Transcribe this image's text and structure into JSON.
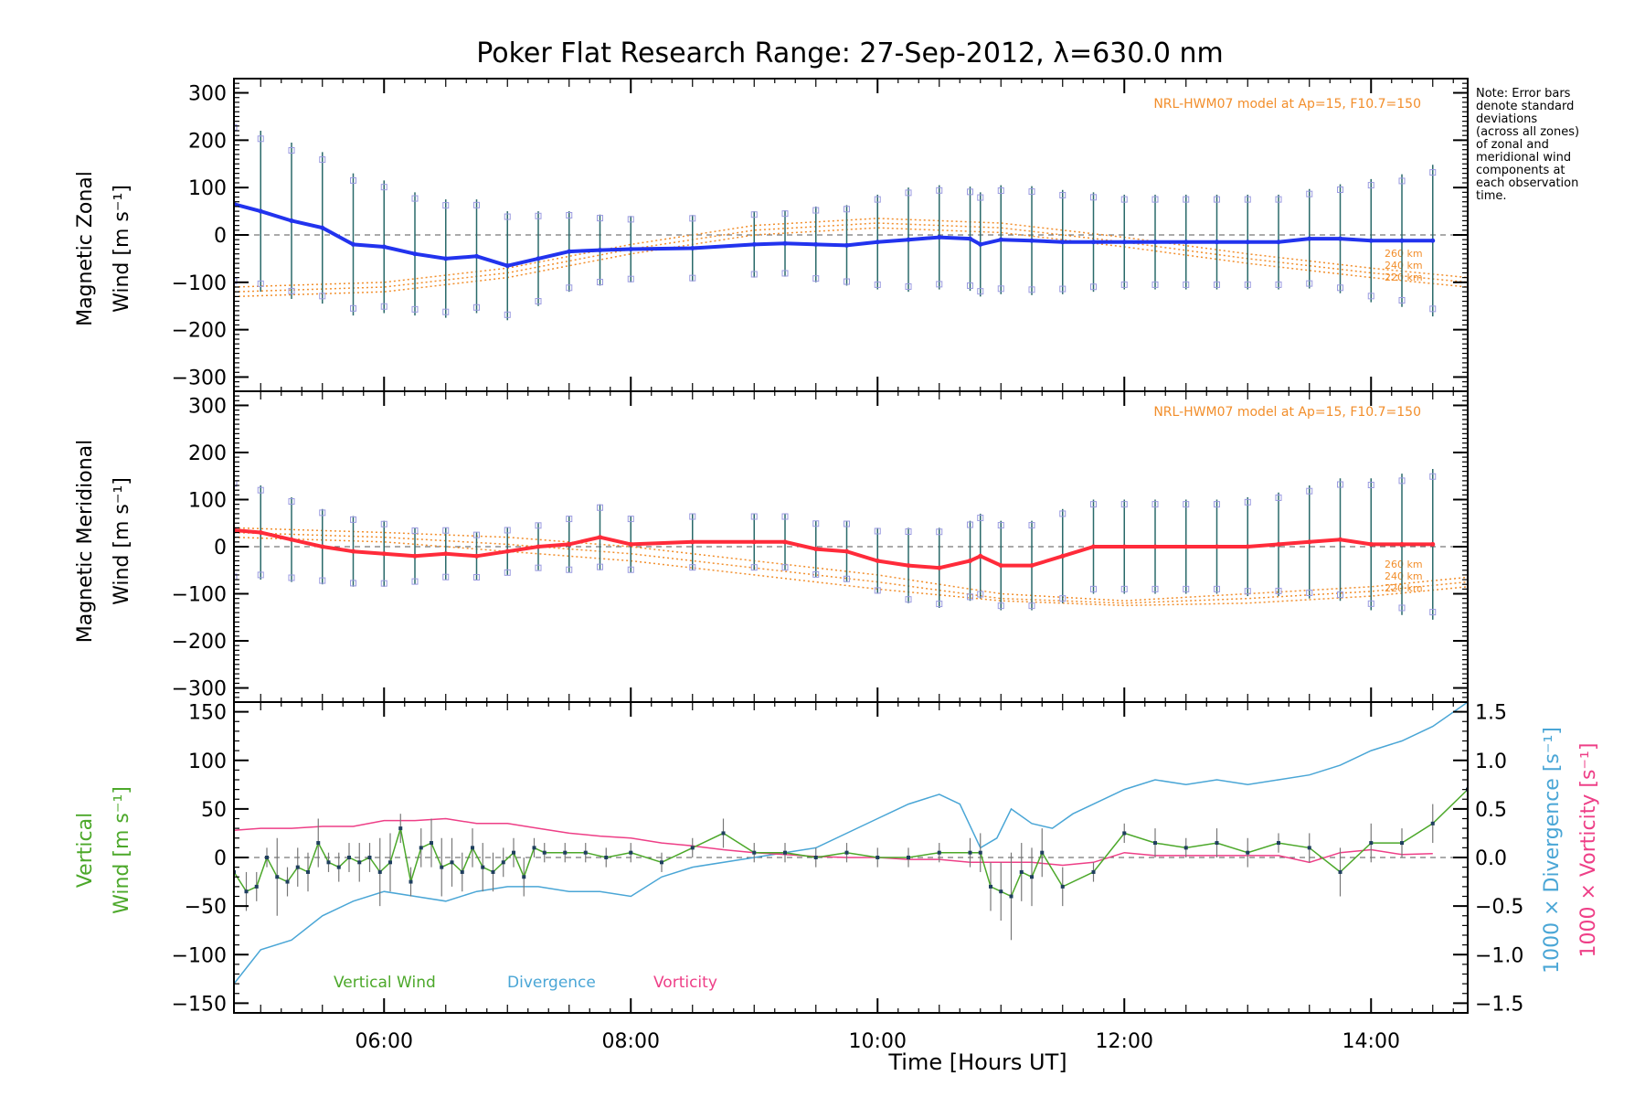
{
  "title": "Poker Flat Research Range: 27-Sep-2012, λ=630.0 nm",
  "note": [
    "Note: Error bars",
    "denote standard",
    "deviations",
    "(across all zones)",
    "of zonal and",
    "meridional wind",
    "components at",
    "each observation",
    "time."
  ],
  "colors": {
    "zonal": "#2233ee",
    "meridional": "#ff2b3a",
    "vertical": "#4ca82a",
    "divergence": "#4aa6d6",
    "vorticity": "#ee3f87",
    "model": "#f28e2b",
    "scatter": "#9a9ae0"
  },
  "chart_data": [
    {
      "type": "line",
      "panel": "zonal",
      "ylabel_line1": "Magnetic Zonal",
      "ylabel_line2": "Wind [m s⁻¹]",
      "ylim": [
        -330,
        330
      ],
      "xlim": [
        "04:47",
        "14:47"
      ],
      "yticks": [
        "300",
        "200",
        "100",
        "0",
        "−100",
        "−200",
        "−300"
      ],
      "model_label": "NRL-HWM07 model at Ap=15, F10.7=150",
      "model_alt_labels": [
        "260 km",
        "240 km",
        "220 km"
      ],
      "series": [
        {
          "name": "",
          "x": [
            "04:47",
            "05:00",
            "05:15",
            "05:30",
            "05:45",
            "06:00",
            "06:15",
            "06:30",
            "06:45",
            "07:00",
            "07:15",
            "07:30",
            "07:45",
            "08:00",
            "08:30",
            "09:00",
            "09:15",
            "09:30",
            "09:45",
            "10:00",
            "10:15",
            "10:30",
            "10:45",
            "10:50",
            "11:00",
            "11:15",
            "11:30",
            "11:45",
            "12:00",
            "12:15",
            "12:30",
            "12:45",
            "13:00",
            "13:15",
            "13:30",
            "13:45",
            "14:00",
            "14:15",
            "14:30"
          ],
          "values": [
            65,
            50,
            30,
            15,
            -20,
            -25,
            -40,
            -50,
            -45,
            -65,
            -50,
            -35,
            -32,
            -30,
            -28,
            -20,
            -18,
            -20,
            -22,
            -15,
            -10,
            -5,
            -8,
            -20,
            -10,
            -12,
            -15,
            -15,
            -15,
            -15,
            -15,
            -15,
            -15,
            -15,
            -8,
            -8,
            -12,
            -12,
            -12
          ],
          "error": [
            180,
            170,
            165,
            160,
            150,
            140,
            130,
            125,
            120,
            115,
            100,
            85,
            75,
            70,
            70,
            70,
            70,
            80,
            85,
            100,
            110,
            110,
            110,
            110,
            115,
            115,
            110,
            105,
            100,
            100,
            100,
            100,
            100,
            100,
            105,
            115,
            130,
            140,
            160
          ]
        }
      ],
      "model_curves": [
        {
          "alt": "260 km",
          "x": [
            "04:47",
            "06:00",
            "07:00",
            "08:00",
            "09:00",
            "10:00",
            "11:00",
            "12:00",
            "13:00",
            "14:00",
            "14:47"
          ],
          "values": [
            -110,
            -100,
            -70,
            -20,
            20,
            35,
            25,
            -5,
            -40,
            -70,
            -90
          ]
        },
        {
          "alt": "240 km",
          "x": [
            "04:47",
            "06:00",
            "07:00",
            "08:00",
            "09:00",
            "10:00",
            "11:00",
            "12:00",
            "13:00",
            "14:00",
            "14:47"
          ],
          "values": [
            -120,
            -110,
            -80,
            -30,
            10,
            25,
            15,
            -15,
            -50,
            -80,
            -100
          ]
        },
        {
          "alt": "220 km",
          "x": [
            "04:47",
            "06:00",
            "07:00",
            "08:00",
            "09:00",
            "10:00",
            "11:00",
            "12:00",
            "13:00",
            "14:00",
            "14:47"
          ],
          "values": [
            -130,
            -120,
            -90,
            -40,
            0,
            15,
            5,
            -25,
            -60,
            -90,
            -110
          ]
        }
      ]
    },
    {
      "type": "line",
      "panel": "meridional",
      "ylabel_line1": "Magnetic Meridional",
      "ylabel_line2": "Wind [m s⁻¹]",
      "ylim": [
        -330,
        330
      ],
      "xlim": [
        "04:47",
        "14:47"
      ],
      "yticks": [
        "300",
        "200",
        "100",
        "0",
        "−100",
        "−200",
        "−300"
      ],
      "model_label": "NRL-HWM07 model at Ap=15, F10.7=150",
      "model_alt_labels": [
        "260 km",
        "240 km",
        "220 km"
      ],
      "series": [
        {
          "name": "",
          "x": [
            "04:47",
            "05:00",
            "05:15",
            "05:30",
            "05:45",
            "06:00",
            "06:15",
            "06:30",
            "06:45",
            "07:00",
            "07:15",
            "07:30",
            "07:45",
            "08:00",
            "08:30",
            "09:00",
            "09:15",
            "09:30",
            "09:45",
            "10:00",
            "10:15",
            "10:30",
            "10:45",
            "10:50",
            "11:00",
            "11:15",
            "11:30",
            "11:45",
            "12:00",
            "12:15",
            "12:30",
            "12:45",
            "13:00",
            "13:15",
            "13:30",
            "13:45",
            "14:00",
            "14:15",
            "14:30"
          ],
          "values": [
            35,
            30,
            15,
            0,
            -10,
            -15,
            -20,
            -15,
            -20,
            -10,
            0,
            5,
            20,
            5,
            10,
            10,
            10,
            -5,
            -10,
            -30,
            -40,
            -45,
            -30,
            -20,
            -40,
            -40,
            -20,
            0,
            0,
            0,
            0,
            0,
            0,
            5,
            10,
            15,
            5,
            5,
            5
          ],
          "error": [
            110,
            100,
            90,
            80,
            75,
            70,
            60,
            55,
            50,
            50,
            50,
            60,
            70,
            60,
            60,
            60,
            60,
            60,
            65,
            70,
            80,
            85,
            85,
            90,
            95,
            95,
            100,
            100,
            100,
            100,
            100,
            100,
            105,
            110,
            120,
            130,
            140,
            150,
            160
          ]
        }
      ],
      "model_curves": [
        {
          "alt": "260 km",
          "x": [
            "04:47",
            "06:00",
            "07:00",
            "08:00",
            "09:00",
            "10:00",
            "11:00",
            "12:00",
            "13:00",
            "14:00",
            "14:47"
          ],
          "values": [
            40,
            30,
            20,
            0,
            -30,
            -60,
            -100,
            -115,
            -100,
            -85,
            -65
          ]
        },
        {
          "alt": "240 km",
          "x": [
            "04:47",
            "06:00",
            "07:00",
            "08:00",
            "09:00",
            "10:00",
            "11:00",
            "12:00",
            "13:00",
            "14:00",
            "14:47"
          ],
          "values": [
            30,
            20,
            5,
            -15,
            -45,
            -75,
            -110,
            -120,
            -110,
            -95,
            -75
          ]
        },
        {
          "alt": "220 km",
          "x": [
            "04:47",
            "06:00",
            "07:00",
            "08:00",
            "09:00",
            "10:00",
            "11:00",
            "12:00",
            "13:00",
            "14:00",
            "14:47"
          ],
          "values": [
            20,
            10,
            -10,
            -30,
            -60,
            -90,
            -115,
            -125,
            -120,
            -105,
            -85
          ]
        }
      ]
    },
    {
      "type": "line",
      "panel": "vertical",
      "ylabel_line1": "Vertical",
      "ylabel_line2": "Wind [m s⁻¹]",
      "ylim": [
        -160,
        160
      ],
      "xlim": [
        "04:47",
        "14:47"
      ],
      "yticks": [
        "150",
        "100",
        "50",
        "0",
        "−50",
        "−100",
        "−150"
      ],
      "y2ticks": [
        "1.5",
        "1.0",
        "0.5",
        "0.0",
        "−0.5",
        "−1.0",
        "−1.5"
      ],
      "y2label_div": "1000 × Divergence [s⁻¹]",
      "y2label_vort": "1000 × Vorticity [s⁻¹]",
      "xticks": [
        "06:00",
        "08:00",
        "10:00",
        "12:00",
        "14:00"
      ],
      "xlabel": "Time [Hours UT]",
      "legend": [
        "Vertical Wind",
        "Divergence",
        "Vorticity"
      ],
      "series": [
        {
          "name": "Vertical Wind",
          "x": [
            "04:47",
            "04:53",
            "04:58",
            "05:03",
            "05:08",
            "05:13",
            "05:18",
            "05:23",
            "05:28",
            "05:33",
            "05:38",
            "05:43",
            "05:48",
            "05:53",
            "05:58",
            "06:03",
            "06:08",
            "06:13",
            "06:18",
            "06:23",
            "06:28",
            "06:33",
            "06:38",
            "06:43",
            "06:48",
            "06:53",
            "06:58",
            "07:03",
            "07:08",
            "07:13",
            "07:18",
            "07:28",
            "07:38",
            "07:48",
            "08:00",
            "08:15",
            "08:30",
            "08:45",
            "09:00",
            "09:15",
            "09:30",
            "09:45",
            "10:00",
            "10:15",
            "10:30",
            "10:45",
            "10:50",
            "10:55",
            "11:00",
            "11:05",
            "11:10",
            "11:15",
            "11:20",
            "11:30",
            "11:45",
            "12:00",
            "12:15",
            "12:30",
            "12:45",
            "13:00",
            "13:15",
            "13:30",
            "13:45",
            "14:00",
            "14:15",
            "14:30",
            "14:47"
          ],
          "values": [
            -15,
            -35,
            -30,
            0,
            -20,
            -25,
            -10,
            -15,
            15,
            -5,
            -10,
            0,
            -5,
            0,
            -15,
            -5,
            30,
            -25,
            10,
            15,
            -10,
            -5,
            -15,
            10,
            -10,
            -15,
            -5,
            5,
            -20,
            10,
            5,
            5,
            5,
            0,
            5,
            -5,
            10,
            25,
            5,
            5,
            0,
            5,
            0,
            0,
            5,
            5,
            5,
            -30,
            -35,
            -40,
            -15,
            -20,
            5,
            -30,
            -15,
            25,
            15,
            10,
            15,
            5,
            15,
            10,
            -15,
            15,
            15,
            35,
            70
          ],
          "error": [
            15,
            20,
            15,
            10,
            40,
            15,
            20,
            20,
            25,
            10,
            15,
            15,
            20,
            15,
            35,
            30,
            15,
            15,
            20,
            25,
            30,
            25,
            20,
            20,
            25,
            20,
            15,
            15,
            20,
            10,
            10,
            10,
            10,
            10,
            10,
            10,
            10,
            15,
            10,
            10,
            10,
            10,
            10,
            10,
            10,
            15,
            20,
            25,
            30,
            45,
            30,
            30,
            25,
            20,
            10,
            10,
            15,
            10,
            15,
            15,
            10,
            15,
            25,
            20,
            15,
            20,
            15
          ]
        },
        {
          "name": "Divergence",
          "x": [
            "04:47",
            "05:00",
            "05:15",
            "05:30",
            "05:45",
            "06:00",
            "06:15",
            "06:30",
            "06:45",
            "07:00",
            "07:15",
            "07:30",
            "07:45",
            "08:00",
            "08:15",
            "08:30",
            "09:00",
            "09:30",
            "10:00",
            "10:15",
            "10:30",
            "10:40",
            "10:50",
            "10:58",
            "11:05",
            "11:15",
            "11:25",
            "11:35",
            "11:45",
            "12:00",
            "12:15",
            "12:30",
            "12:45",
            "13:00",
            "13:15",
            "13:30",
            "13:45",
            "14:00",
            "14:15",
            "14:30",
            "14:47"
          ],
          "values": [
            -1.3,
            -0.95,
            -0.85,
            -0.6,
            -0.45,
            -0.35,
            -0.4,
            -0.45,
            -0.35,
            -0.3,
            -0.3,
            -0.35,
            -0.35,
            -0.4,
            -0.2,
            -0.1,
            0.0,
            0.1,
            0.4,
            0.55,
            0.65,
            0.55,
            0.1,
            0.2,
            0.5,
            0.35,
            0.3,
            0.45,
            0.55,
            0.7,
            0.8,
            0.75,
            0.8,
            0.75,
            0.8,
            0.85,
            0.95,
            1.1,
            1.2,
            1.35,
            1.6
          ]
        },
        {
          "name": "Vorticity",
          "x": [
            "04:47",
            "05:00",
            "05:15",
            "05:30",
            "05:45",
            "06:00",
            "06:15",
            "06:30",
            "06:45",
            "07:00",
            "07:15",
            "07:30",
            "07:45",
            "08:00",
            "08:15",
            "08:30",
            "08:45",
            "09:00",
            "09:15",
            "09:30",
            "09:45",
            "10:00",
            "10:15",
            "10:30",
            "10:45",
            "11:00",
            "11:15",
            "11:30",
            "11:45",
            "12:00",
            "12:15",
            "12:30",
            "12:45",
            "13:00",
            "13:15",
            "13:30",
            "13:45",
            "14:00",
            "14:15",
            "14:30"
          ],
          "values": [
            0.28,
            0.3,
            0.3,
            0.32,
            0.32,
            0.38,
            0.38,
            0.4,
            0.35,
            0.35,
            0.3,
            0.25,
            0.22,
            0.2,
            0.15,
            0.12,
            0.08,
            0.05,
            0.03,
            0.01,
            0.0,
            0.0,
            -0.02,
            -0.02,
            -0.05,
            -0.05,
            -0.05,
            -0.08,
            -0.05,
            0.05,
            0.02,
            0.02,
            0.02,
            0.02,
            0.02,
            -0.05,
            0.05,
            0.08,
            0.03,
            0.04
          ]
        }
      ]
    }
  ]
}
